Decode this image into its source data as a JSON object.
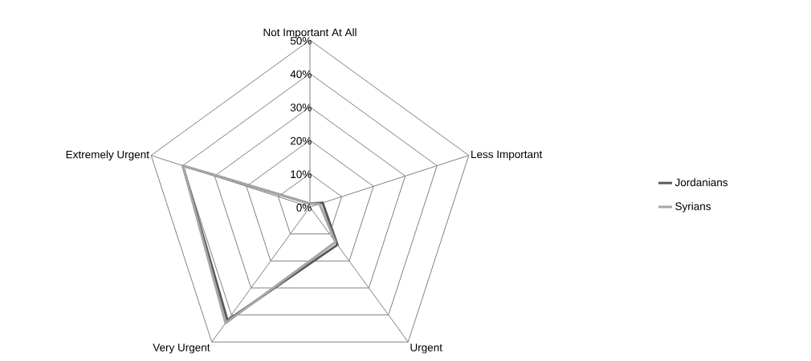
{
  "chart_data": {
    "type": "radar",
    "categories": [
      "Not Important At All",
      "Less Important",
      "Urgent",
      "Very Urgent",
      "Extremely Urgent"
    ],
    "series": [
      {
        "name": "Jordanians",
        "color": "#595959",
        "values": [
          1,
          4,
          14,
          42,
          40
        ]
      },
      {
        "name": "Syrians",
        "color": "#a6a6a6",
        "values": [
          1,
          3,
          13,
          43,
          40
        ]
      }
    ],
    "ylim": [
      0,
      50
    ],
    "yticks": [
      {
        "value": 0,
        "label": "0%"
      },
      {
        "value": 10,
        "label": "10%"
      },
      {
        "value": 20,
        "label": "20%"
      },
      {
        "value": 30,
        "label": "30%"
      },
      {
        "value": 40,
        "label": "40%"
      },
      {
        "value": 50,
        "label": "50%"
      }
    ],
    "grid": true,
    "legend": "right",
    "marker": "none",
    "line_style": "solid"
  }
}
